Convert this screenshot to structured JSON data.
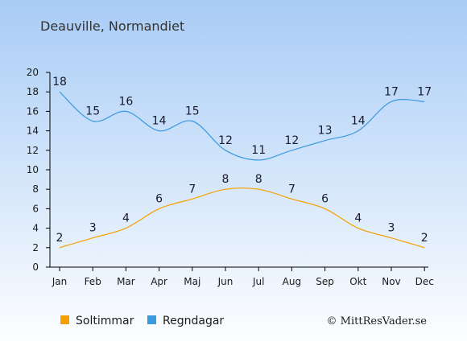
{
  "title": "Deauville, Normandiet",
  "credit": "© MittResVader.se",
  "chart_data": {
    "type": "line",
    "categories": [
      "Jan",
      "Feb",
      "Mar",
      "Apr",
      "Maj",
      "Jun",
      "Jul",
      "Aug",
      "Sep",
      "Okt",
      "Nov",
      "Dec"
    ],
    "ylim": [
      0,
      20
    ],
    "yticks": [
      0,
      2,
      4,
      6,
      8,
      10,
      12,
      14,
      16,
      18,
      20
    ],
    "grid": false,
    "legend_position": "bottom-left",
    "series": [
      {
        "name": "Soltimmar",
        "color": "#f5a000",
        "values": [
          2,
          3,
          4,
          6,
          7,
          8,
          8,
          7,
          6,
          4,
          3,
          2
        ]
      },
      {
        "name": "Regndagar",
        "color": "#3b99e0",
        "values": [
          18,
          15,
          16,
          14,
          15,
          12,
          11,
          12,
          13,
          14,
          17,
          17
        ]
      }
    ]
  },
  "colors": {
    "background_top": "#a8ccf6",
    "background_bottom": "#ffffff",
    "axis": "#000000"
  }
}
